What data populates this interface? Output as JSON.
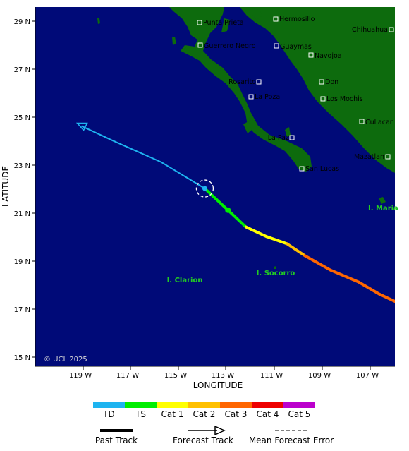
{
  "map": {
    "xlabel": "LONGITUDE",
    "ylabel": "LATITUDE",
    "x_ticks": [
      "119 W",
      "117 W",
      "115 W",
      "113 W",
      "111 W",
      "109 W",
      "107 W"
    ],
    "y_ticks": [
      "29 N",
      "27 N",
      "25 N",
      "23 N",
      "21 N",
      "19 N",
      "17 N",
      "15 N"
    ],
    "copyright": "© UCL 2025",
    "ocean_color": "#000a78",
    "land_color": "#0d6b0d"
  },
  "cities": [
    "Hermosillo",
    "Punta Prieta",
    "Chihuahua",
    "Guerrero Negro",
    "Guaymas",
    "Navojoa",
    "Rosarito",
    "Don",
    "La Poza",
    "Los Mochis",
    "Culiacan",
    "La Paz",
    "Mazatlan",
    "San Lucas"
  ],
  "islands": [
    "I. Maria",
    "I. Socorro",
    "I. Clarion"
  ],
  "track": {
    "current_position": {
      "lon": -113.4,
      "lat": 22.1
    },
    "forecast": [
      {
        "lon": -118.2,
        "lat": 24.7
      },
      {
        "lon": -117.0,
        "lat": 24.1
      },
      {
        "lon": -115.1,
        "lat": 23.2
      },
      {
        "lon": -113.4,
        "lat": 22.1
      }
    ],
    "past": [
      {
        "lon": -113.4,
        "lat": 22.1,
        "cat": "TS"
      },
      {
        "lon": -112.5,
        "lat": 21.2,
        "cat": "TS"
      },
      {
        "lon": -111.8,
        "lat": 20.5,
        "cat": "TS"
      },
      {
        "lon": -111.0,
        "lat": 20.1,
        "cat": "Cat 1"
      },
      {
        "lon": -110.2,
        "lat": 19.8,
        "cat": "Cat 1"
      },
      {
        "lon": -109.5,
        "lat": 19.3,
        "cat": "Cat 2"
      },
      {
        "lon": -108.5,
        "lat": 18.7,
        "cat": "Cat 3"
      },
      {
        "lon": -107.4,
        "lat": 18.2,
        "cat": "Cat 3"
      },
      {
        "lon": -106.6,
        "lat": 17.7,
        "cat": "Cat 3"
      },
      {
        "lon": -106.0,
        "lat": 17.4,
        "cat": "Cat 3"
      }
    ],
    "marker_position": {
      "lon": -112.5,
      "lat": 21.2
    }
  },
  "category_colors": {
    "TD": "#1eb4f0",
    "TS": "#00ee00",
    "Cat 1": "#ffff00",
    "Cat 2": "#ffc000",
    "Cat 3": "#ff6600",
    "Cat 4": "#ee0000",
    "Cat 5": "#bb00cc"
  },
  "legend": {
    "categories": [
      "TD",
      "TS",
      "Cat 1",
      "Cat 2",
      "Cat 3",
      "Cat 4",
      "Cat 5"
    ],
    "past_track": "Past Track",
    "forecast_track": "Forecast Track",
    "mean_error": "Mean Forecast Error"
  }
}
